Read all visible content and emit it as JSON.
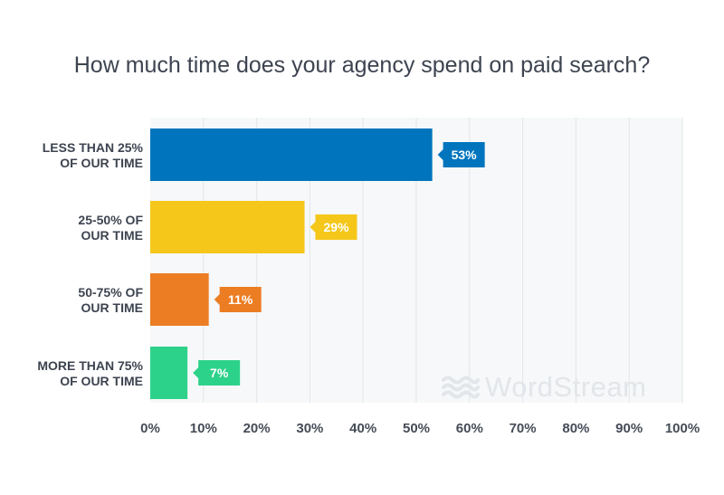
{
  "chart_data": {
    "type": "bar",
    "orientation": "horizontal",
    "title": "How much time does your agency spend on paid search?",
    "categories": [
      [
        "LESS THAN 25%",
        "OF OUR TIME"
      ],
      [
        "25-50% OF",
        "OUR TIME"
      ],
      [
        "50-75% OF",
        "OUR TIME"
      ],
      [
        "MORE THAN 75%",
        "OF OUR TIME"
      ]
    ],
    "values": [
      53,
      29,
      11,
      7
    ],
    "data_labels": [
      "53%",
      "29%",
      "11%",
      "7%"
    ],
    "colors": [
      "#0075be",
      "#f5c71a",
      "#ec7d23",
      "#2dd28a"
    ],
    "xlim": [
      0,
      100
    ],
    "xticks": [
      0,
      10,
      20,
      30,
      40,
      50,
      60,
      70,
      80,
      90,
      100
    ],
    "xtick_labels": [
      "0%",
      "10%",
      "20%",
      "30%",
      "40%",
      "50%",
      "60%",
      "70%",
      "80%",
      "90%",
      "100%"
    ],
    "grid": true,
    "legend": "none"
  },
  "watermark": {
    "text": "WordStream",
    "icon": "wave-logo-icon"
  }
}
